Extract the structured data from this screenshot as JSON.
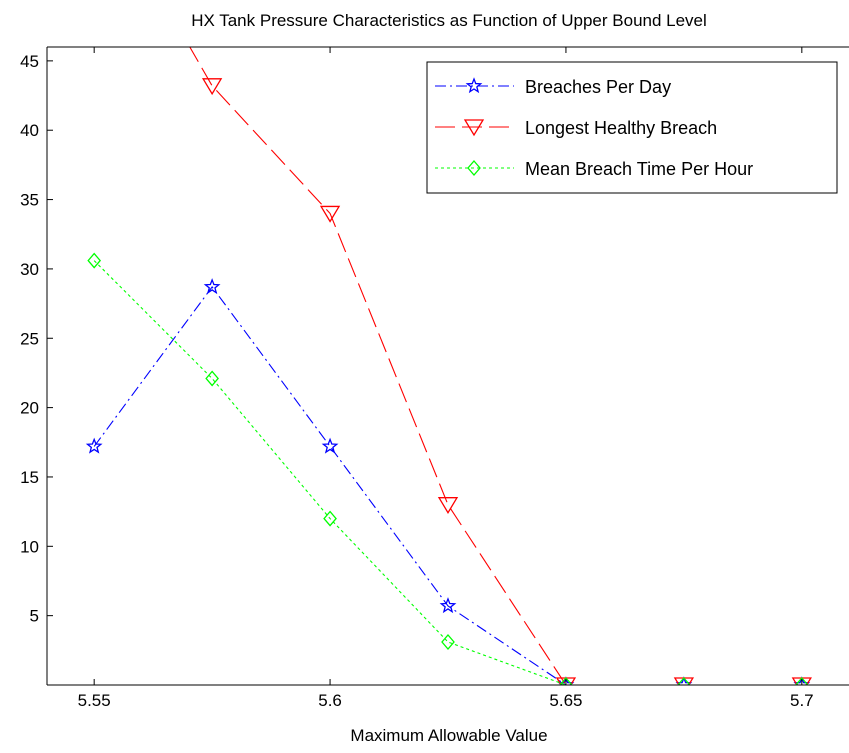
{
  "chart_data": {
    "type": "line",
    "title": "HX Tank Pressure Characteristics as Function of Upper Bound Level",
    "xlabel": "Maximum Allowable Value",
    "ylabel": "",
    "xlim": [
      5.54,
      5.71
    ],
    "ylim": [
      0,
      46
    ],
    "x": [
      5.55,
      5.575,
      5.6,
      5.625,
      5.65,
      5.675,
      5.7
    ],
    "xticks": [
      5.55,
      5.6,
      5.65,
      5.7
    ],
    "xtick_labels": [
      "5.55",
      "5.6",
      "5.65",
      "5.7"
    ],
    "yticks": [
      5,
      10,
      15,
      20,
      25,
      30,
      35,
      40,
      45
    ],
    "ytick_labels": [
      "5",
      "10",
      "15",
      "20",
      "25",
      "30",
      "35",
      "40",
      "45"
    ],
    "grid": false,
    "legend_position": "top-right",
    "series": [
      {
        "name": "Breaches Per Day",
        "color": "#0000ff",
        "line_style": "dash-dot",
        "marker": "pentagram",
        "values": [
          17.2,
          28.7,
          17.2,
          5.7,
          0,
          0,
          0
        ]
      },
      {
        "name": "Longest Healthy Breach",
        "color": "#ff0000",
        "line_style": "long-dash",
        "marker": "triangle-down",
        "values": [
          58,
          43.2,
          34,
          13,
          0,
          0,
          0
        ]
      },
      {
        "name": "Mean Breach Time Per Hour",
        "color": "#00ff00",
        "line_style": "dotted",
        "marker": "diamond",
        "values": [
          30.6,
          22.1,
          12,
          3.1,
          0,
          0,
          0
        ]
      }
    ]
  }
}
